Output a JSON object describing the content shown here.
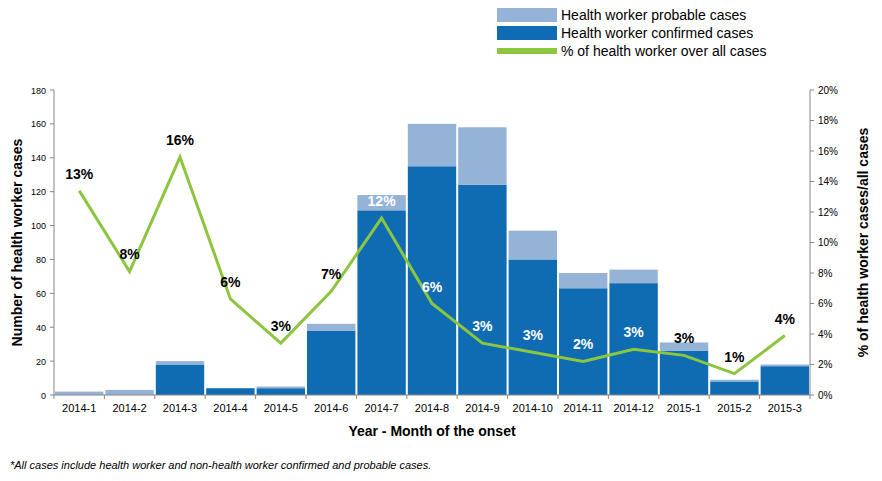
{
  "chart_data": {
    "type": "bar",
    "stacked": true,
    "grid": false,
    "legend": "top-right",
    "x_label": "Year - Month of the onset",
    "y_label": "Number of health worker cases",
    "y2_label": "% of health worker cases/all cases",
    "footnote": "*All cases include health worker and non-health worker confirmed and probable cases.",
    "categories": [
      "2014-1",
      "2014-2",
      "2014-3",
      "2014-4",
      "2014-5",
      "2014-6",
      "2014-7",
      "2014-8",
      "2014-9",
      "2014-10",
      "2014-11",
      "2014-12",
      "2015-1",
      "2015-2",
      "2015-3"
    ],
    "ylim": [
      0,
      180
    ],
    "yticks": [
      0,
      20,
      40,
      60,
      80,
      100,
      120,
      140,
      160,
      180
    ],
    "y2lim": [
      0,
      20
    ],
    "y2ticks": [
      {
        "value": 0,
        "label": "0%"
      },
      {
        "value": 2,
        "label": "2%"
      },
      {
        "value": 4,
        "label": "4%"
      },
      {
        "value": 6,
        "label": "6%"
      },
      {
        "value": 8,
        "label": "8%"
      },
      {
        "value": 10,
        "label": "10%"
      },
      {
        "value": 12,
        "label": "12%"
      },
      {
        "value": 14,
        "label": "14%"
      },
      {
        "value": 16,
        "label": "16%"
      },
      {
        "value": 18,
        "label": "18%"
      },
      {
        "value": 20,
        "label": "20%"
      }
    ],
    "series": [
      {
        "name": "Health worker confirmed cases",
        "type": "bar",
        "color": "#0F6CB3",
        "values": [
          0,
          0,
          18,
          4,
          4,
          38,
          109,
          135,
          124,
          80,
          63,
          66,
          26,
          8,
          17
        ]
      },
      {
        "name": "Health worker probable cases",
        "type": "bar",
        "color": "#95B3D7",
        "values": [
          2,
          3,
          2,
          0,
          1,
          4,
          9,
          25,
          34,
          17,
          9,
          8,
          5,
          1,
          1
        ]
      },
      {
        "name": "% of health worker over all cases",
        "type": "line",
        "axis": "y2",
        "color": "#8CC63F",
        "line_style": "solid",
        "marker": "none",
        "data_labels": true,
        "values": [
          13.4,
          8.1,
          15.6,
          6.3,
          3.4,
          6.8,
          11.6,
          6.0,
          3.4,
          2.8,
          2.2,
          3.0,
          2.6,
          1.4,
          3.9
        ],
        "value_labels": [
          "13%",
          "8%",
          "16%",
          "6%",
          "3%",
          "7%",
          "12%",
          "6%",
          "3%",
          "3%",
          "2%",
          "3%",
          "3%",
          "1%",
          "4%"
        ]
      }
    ]
  }
}
